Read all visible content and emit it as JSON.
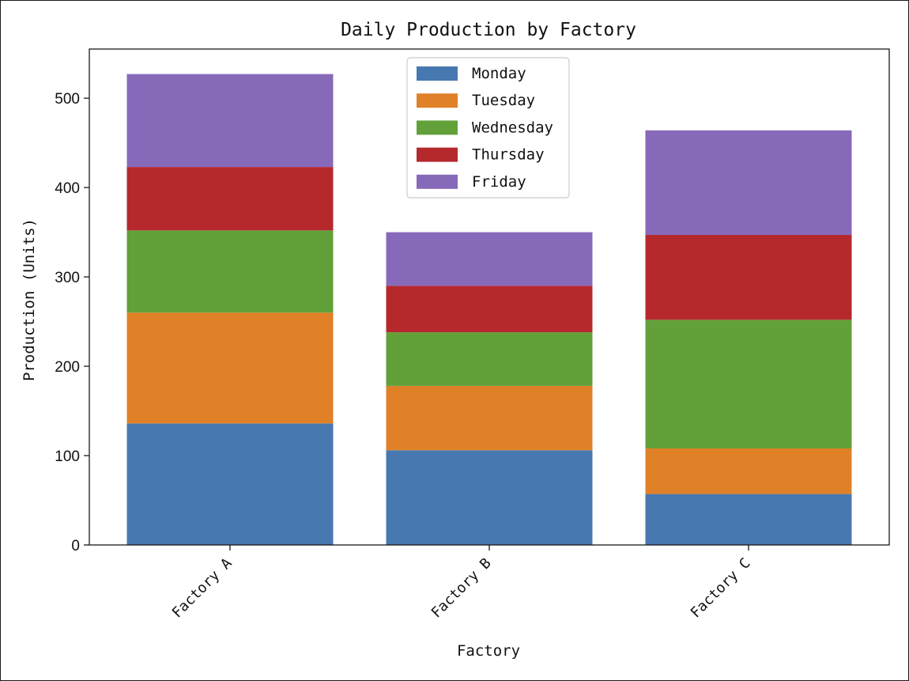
{
  "chart_data": {
    "type": "bar",
    "stacked": true,
    "title": "Daily Production by Factory",
    "xlabel": "Factory",
    "ylabel": "Production (Units)",
    "categories": [
      "Factory A",
      "Factory B",
      "Factory C"
    ],
    "series": [
      {
        "name": "Monday",
        "color": "#4878b0",
        "values": [
          136,
          106,
          57
        ]
      },
      {
        "name": "Tuesday",
        "color": "#e08128",
        "values": [
          124,
          72,
          51
        ]
      },
      {
        "name": "Wednesday",
        "color": "#62a03a",
        "values": [
          92,
          60,
          144
        ]
      },
      {
        "name": "Thursday",
        "color": "#b5292d",
        "values": [
          71,
          52,
          95
        ]
      },
      {
        "name": "Friday",
        "color": "#8769ba",
        "values": [
          104,
          60,
          117
        ]
      }
    ],
    "ylim": [
      0,
      555
    ],
    "yticks": [
      0,
      100,
      200,
      300,
      400,
      500
    ],
    "legend": "top-center",
    "grid": false
  }
}
